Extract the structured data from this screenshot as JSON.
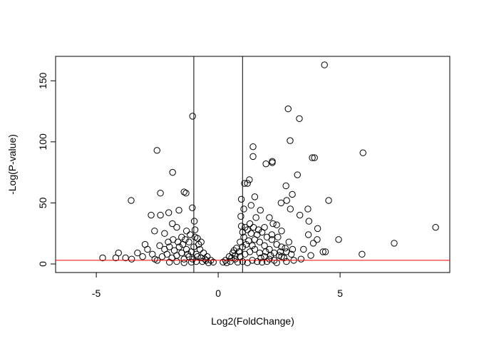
{
  "chart_data": {
    "type": "scatter",
    "title": "",
    "xlabel": "Log2(FoldChange)",
    "ylabel": "-Log(P-value)",
    "xlim": [
      -6.67,
      9.5
    ],
    "ylim": [
      -7,
      170
    ],
    "xticks": [
      "-5",
      "0",
      "5"
    ],
    "yticks": [
      "0",
      "50",
      "100",
      "150"
    ],
    "grid": false,
    "legend": "none",
    "marker": "open-circle",
    "point_color": "#000000",
    "vertical_lines": [
      -1,
      1
    ],
    "vertical_line_color": "#000000",
    "threshold_line": 3,
    "threshold_color": "#ff0000",
    "points": [
      [
        4.36,
        163
      ],
      [
        2.87,
        127
      ],
      [
        3.33,
        119
      ],
      [
        -1.05,
        121
      ],
      [
        2.95,
        101
      ],
      [
        1.43,
        96
      ],
      [
        1.43,
        88
      ],
      [
        -2.51,
        93
      ],
      [
        5.94,
        91
      ],
      [
        3.86,
        87
      ],
      [
        3.95,
        87
      ],
      [
        1.96,
        82
      ],
      [
        2.22,
        84
      ],
      [
        2.22,
        83
      ],
      [
        3.25,
        73
      ],
      [
        -1.87,
        75
      ],
      [
        1.28,
        69
      ],
      [
        2.78,
        64
      ],
      [
        1.2,
        66
      ],
      [
        1.08,
        66
      ],
      [
        -3.57,
        52
      ],
      [
        4.53,
        52
      ],
      [
        -2.37,
        58
      ],
      [
        -1.4,
        59
      ],
      [
        -1.32,
        58
      ],
      [
        8.92,
        30
      ],
      [
        7.22,
        17
      ],
      [
        5.9,
        8
      ],
      [
        4.94,
        20
      ],
      [
        4.06,
        20
      ],
      [
        -4.74,
        5
      ],
      [
        -4.09,
        9
      ],
      [
        -2.75,
        40
      ],
      [
        -2.37,
        40
      ],
      [
        2.81,
        52
      ],
      [
        3.04,
        57
      ],
      [
        3.68,
        45
      ],
      [
        3.35,
        40
      ],
      [
        2.96,
        45
      ],
      [
        2.58,
        50
      ],
      [
        2.4,
        32
      ],
      [
        3.7,
        24
      ],
      [
        4.08,
        29
      ],
      [
        3.72,
        35
      ],
      [
        -2.03,
        42
      ],
      [
        -1.88,
        33
      ],
      [
        -2.61,
        27
      ],
      [
        -1.61,
        44
      ],
      [
        -1.06,
        46
      ],
      [
        -0.98,
        35
      ],
      [
        -0.85,
        21
      ],
      [
        1.5,
        55
      ],
      [
        1.35,
        48
      ],
      [
        1.73,
        44
      ],
      [
        2.1,
        38
      ],
      [
        2.25,
        33
      ],
      [
        0.95,
        53
      ],
      [
        1.05,
        45
      ],
      [
        0.93,
        39
      ],
      [
        1.55,
        38
      ],
      [
        1.9,
        30
      ],
      [
        2.45,
        22
      ],
      [
        2.9,
        18
      ],
      [
        3.05,
        12
      ],
      [
        3.5,
        12
      ],
      [
        3.9,
        17
      ],
      [
        4.3,
        10
      ],
      [
        4.4,
        10
      ],
      [
        3.8,
        7
      ],
      [
        3.4,
        4
      ],
      [
        2.6,
        6
      ],
      [
        -3.31,
        9
      ],
      [
        -3.0,
        16
      ],
      [
        -2.9,
        12
      ],
      [
        -2.2,
        25
      ],
      [
        -1.7,
        30
      ],
      [
        -1.5,
        22
      ],
      [
        -3.55,
        4
      ],
      [
        -3.8,
        5
      ],
      [
        -4.2,
        5
      ],
      [
        -2.5,
        3
      ],
      [
        -2.0,
        14
      ],
      [
        -1.3,
        27
      ],
      [
        -1.2,
        18
      ],
      [
        -0.95,
        28
      ],
      [
        -0.75,
        12
      ],
      [
        -0.6,
        9
      ],
      [
        -0.45,
        6
      ],
      [
        -0.3,
        3
      ],
      [
        -0.2,
        1.5
      ],
      [
        -0.5,
        3
      ],
      [
        -0.7,
        5
      ],
      [
        -0.9,
        8
      ],
      [
        -1.1,
        10
      ],
      [
        -1.3,
        12
      ],
      [
        -1.5,
        9
      ],
      [
        -1.7,
        7
      ],
      [
        -1.9,
        5
      ],
      [
        -2.1,
        8
      ],
      [
        -2.3,
        6
      ],
      [
        -2.6,
        4
      ],
      [
        -0.8,
        16
      ],
      [
        -1.0,
        14
      ],
      [
        -1.2,
        6
      ],
      [
        -1.4,
        4
      ],
      [
        -1.6,
        14
      ],
      [
        -1.8,
        11
      ],
      [
        -2.2,
        12
      ],
      [
        -2.4,
        15
      ],
      [
        -0.65,
        2
      ],
      [
        -0.9,
        2
      ],
      [
        -1.1,
        1.5
      ],
      [
        -1.4,
        1
      ],
      [
        -1.7,
        2
      ],
      [
        -2.0,
        1.5
      ],
      [
        -0.4,
        1
      ],
      [
        -0.55,
        4
      ],
      [
        -0.85,
        6
      ],
      [
        -1.05,
        4
      ],
      [
        -1.25,
        8
      ],
      [
        -1.45,
        16
      ],
      [
        -1.65,
        18
      ],
      [
        -1.85,
        20
      ],
      [
        -2.05,
        18
      ],
      [
        -2.7,
        8
      ],
      [
        -3.1,
        6
      ],
      [
        -0.7,
        18
      ],
      [
        -0.95,
        22
      ],
      [
        -1.15,
        24
      ],
      [
        -1.35,
        20
      ],
      [
        0.2,
        1.5
      ],
      [
        0.3,
        3
      ],
      [
        0.45,
        6
      ],
      [
        0.6,
        9
      ],
      [
        0.75,
        13
      ],
      [
        0.9,
        18
      ],
      [
        1.05,
        22
      ],
      [
        1.2,
        28
      ],
      [
        1.35,
        25
      ],
      [
        1.5,
        20
      ],
      [
        1.7,
        18
      ],
      [
        1.9,
        15
      ],
      [
        2.1,
        12
      ],
      [
        2.3,
        9
      ],
      [
        2.5,
        7
      ],
      [
        2.7,
        5
      ],
      [
        0.5,
        2
      ],
      [
        0.7,
        4
      ],
      [
        0.9,
        6
      ],
      [
        1.1,
        8
      ],
      [
        1.3,
        10
      ],
      [
        1.5,
        12
      ],
      [
        1.7,
        9
      ],
      [
        1.9,
        6
      ],
      [
        2.1,
        4
      ],
      [
        2.3,
        3
      ],
      [
        0.8,
        1.5
      ],
      [
        1.0,
        2
      ],
      [
        1.2,
        1
      ],
      [
        1.4,
        3
      ],
      [
        1.6,
        2
      ],
      [
        1.8,
        1.5
      ],
      [
        2.0,
        2
      ],
      [
        2.4,
        1
      ],
      [
        2.8,
        2
      ],
      [
        3.1,
        3
      ],
      [
        0.35,
        1
      ],
      [
        0.55,
        5
      ],
      [
        0.85,
        10
      ],
      [
        1.0,
        14
      ],
      [
        1.15,
        16
      ],
      [
        1.25,
        19
      ],
      [
        1.4,
        15
      ],
      [
        1.6,
        24
      ],
      [
        1.8,
        26
      ],
      [
        2.0,
        22
      ],
      [
        2.2,
        20
      ],
      [
        2.4,
        16
      ],
      [
        2.6,
        14
      ],
      [
        2.8,
        10
      ],
      [
        3.0,
        8
      ],
      [
        1.1,
        30
      ],
      [
        1.3,
        33
      ],
      [
        1.0,
        26
      ],
      [
        0.95,
        31
      ],
      [
        1.45,
        30
      ],
      [
        1.65,
        28
      ],
      [
        2.6,
        27
      ],
      [
        2.2,
        24
      ],
      [
        0.7,
        7
      ],
      [
        0.65,
        11
      ],
      [
        1.75,
        5
      ],
      [
        1.95,
        10
      ],
      [
        2.15,
        7
      ],
      [
        2.55,
        10
      ],
      [
        2.75,
        13
      ]
    ]
  }
}
